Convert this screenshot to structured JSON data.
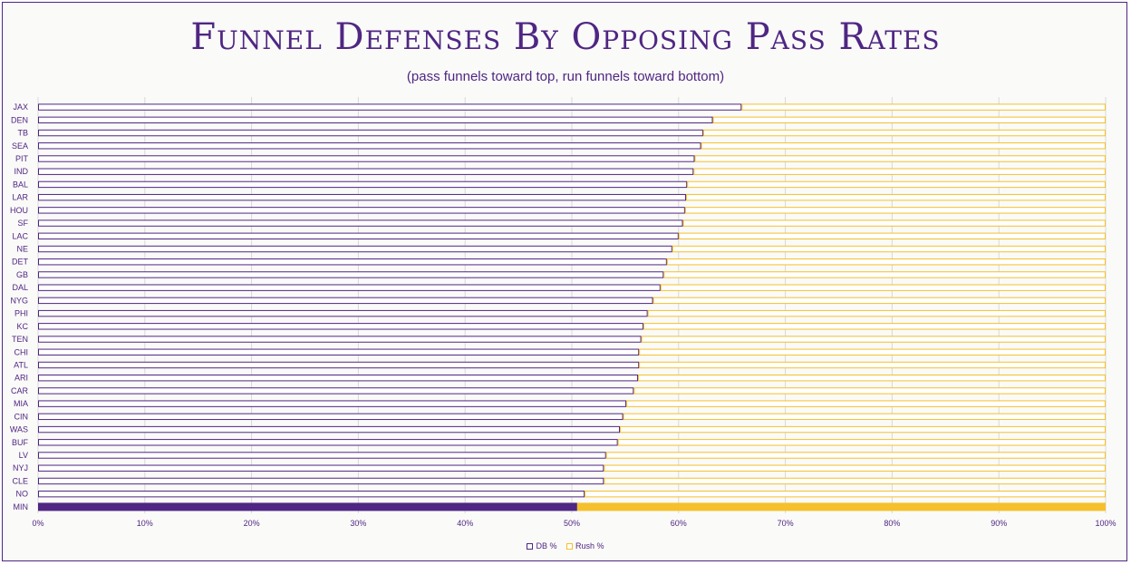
{
  "colors": {
    "db": "#4f2683",
    "rush": "#f5c02b",
    "db_fill_highlight": "#4f2683",
    "rush_fill_highlight": "#f5c02b",
    "plain_fill": "#ffffff",
    "gridline": "#d9d9d9",
    "text": "#4f2683"
  },
  "chart_data": {
    "type": "bar",
    "orientation": "horizontal",
    "stacked": "100%",
    "title": "Funnel Defenses By Opposing Pass Rates",
    "subtitle": "(pass funnels toward top, run funnels toward bottom)",
    "categories": [
      "JAX",
      "DEN",
      "TB",
      "SEA",
      "PIT",
      "IND",
      "BAL",
      "LAR",
      "HOU",
      "SF",
      "LAC",
      "NE",
      "DET",
      "GB",
      "DAL",
      "NYG",
      "PHI",
      "KC",
      "TEN",
      "CHI",
      "ATL",
      "ARI",
      "CAR",
      "MIA",
      "CIN",
      "WAS",
      "BUF",
      "LV",
      "NYJ",
      "CLE",
      "NO",
      "MIN"
    ],
    "series": [
      {
        "name": "DB %",
        "values": [
          0.659,
          0.632,
          0.623,
          0.621,
          0.615,
          0.614,
          0.608,
          0.607,
          0.606,
          0.604,
          0.6,
          0.594,
          0.589,
          0.586,
          0.583,
          0.576,
          0.571,
          0.567,
          0.565,
          0.563,
          0.563,
          0.562,
          0.558,
          0.551,
          0.548,
          0.545,
          0.543,
          0.532,
          0.53,
          0.53,
          0.512,
          0.505
        ]
      },
      {
        "name": "Rush %",
        "values": [
          0.341,
          0.368,
          0.377,
          0.379,
          0.385,
          0.386,
          0.392,
          0.393,
          0.394,
          0.396,
          0.4,
          0.406,
          0.411,
          0.414,
          0.417,
          0.424,
          0.429,
          0.433,
          0.435,
          0.437,
          0.437,
          0.438,
          0.442,
          0.449,
          0.452,
          0.455,
          0.457,
          0.468,
          0.47,
          0.47,
          0.488,
          0.495
        ]
      }
    ],
    "highlight_category": "MIN",
    "x_ticks": [
      "0%",
      "10%",
      "20%",
      "30%",
      "40%",
      "50%",
      "60%",
      "70%",
      "80%",
      "90%",
      "100%"
    ],
    "xlim": [
      0,
      1
    ],
    "grid": "vertical",
    "legend_position": "bottom"
  }
}
